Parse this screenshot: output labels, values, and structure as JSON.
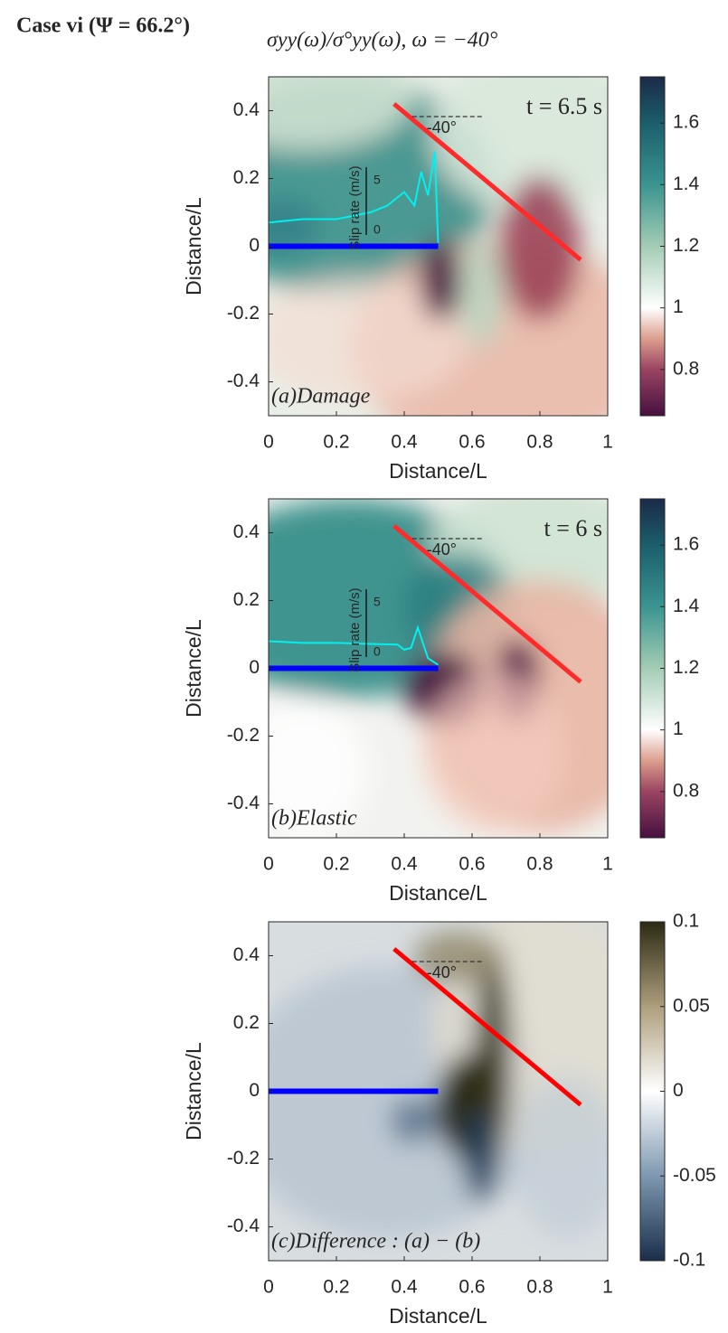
{
  "header": "Case vi (Ψ = 66.2°)",
  "title": "σyy(ω)/σ°yy(ω), ω = −40°",
  "chart_data": [
    {
      "type": "heatmap",
      "panel_label": "(a)Damage",
      "time_label": "t = 6.5 s",
      "xlabel": "Distance/L",
      "ylabel": "Distance/L",
      "xlim": [
        0,
        1
      ],
      "xticks": [
        0,
        0.2,
        0.4,
        0.6,
        0.8,
        1
      ],
      "ylim": [
        -0.5,
        0.5
      ],
      "yticks": [
        -0.4,
        -0.2,
        0,
        0.2,
        0.4
      ],
      "clim": [
        0.65,
        1.75
      ],
      "cticks": [
        0.8,
        1,
        1.2,
        1.4,
        1.6
      ],
      "colormap": [
        [
          0.65,
          "#451040"
        ],
        [
          0.8,
          "#9a4462"
        ],
        [
          0.9,
          "#dc9e8e"
        ],
        [
          1,
          "#ffffff"
        ],
        [
          1.2,
          "#a3ccb4"
        ],
        [
          1.4,
          "#3a9490"
        ],
        [
          1.6,
          "#1b5e6c"
        ],
        [
          1.75,
          "#1b2a48"
        ]
      ],
      "angle_label": "-40°",
      "slip_label": "Slip rate (m/s)",
      "slip_scale_ticks": [
        5,
        0
      ],
      "faults": [
        {
          "color": "#0000ff",
          "x": [
            0,
            0.5
          ],
          "y": [
            0,
            0
          ]
        },
        {
          "color": "#ff2a2a",
          "x": [
            0.37,
            0.92
          ],
          "y": [
            0.42,
            -0.04
          ]
        }
      ],
      "series": [
        {
          "color": "#00f0f0",
          "x": [
            0,
            0.1,
            0.2,
            0.3,
            0.35,
            0.4,
            0.43,
            0.45,
            0.47,
            0.49,
            0.5
          ],
          "values": [
            0.07,
            0.08,
            0.08,
            0.1,
            0.12,
            0.16,
            0.12,
            0.22,
            0.15,
            0.28,
            0.01
          ]
        }
      ]
    },
    {
      "type": "heatmap",
      "panel_label": "(b)Elastic",
      "time_label": "t = 6 s",
      "xlabel": "Distance/L",
      "ylabel": "Distance/L",
      "xlim": [
        0,
        1
      ],
      "xticks": [
        0,
        0.2,
        0.4,
        0.6,
        0.8,
        1
      ],
      "ylim": [
        -0.5,
        0.5
      ],
      "yticks": [
        -0.4,
        -0.2,
        0,
        0.2,
        0.4
      ],
      "clim": [
        0.65,
        1.75
      ],
      "cticks": [
        0.8,
        1,
        1.2,
        1.4,
        1.6
      ],
      "colormap": [
        [
          0.65,
          "#451040"
        ],
        [
          0.8,
          "#9a4462"
        ],
        [
          0.9,
          "#dc9e8e"
        ],
        [
          1,
          "#ffffff"
        ],
        [
          1.2,
          "#a3ccb4"
        ],
        [
          1.4,
          "#3a9490"
        ],
        [
          1.6,
          "#1b5e6c"
        ],
        [
          1.75,
          "#1b2a48"
        ]
      ],
      "angle_label": "-40°",
      "slip_label": "Slip rate (m/s)",
      "slip_scale_ticks": [
        5,
        0
      ],
      "faults": [
        {
          "color": "#0000ff",
          "x": [
            0,
            0.5
          ],
          "y": [
            0,
            0
          ]
        },
        {
          "color": "#ff2a2a",
          "x": [
            0.37,
            0.92
          ],
          "y": [
            0.42,
            -0.04
          ]
        }
      ],
      "series": [
        {
          "color": "#00f0f0",
          "x": [
            0,
            0.1,
            0.2,
            0.3,
            0.38,
            0.4,
            0.42,
            0.44,
            0.47,
            0.5
          ],
          "values": [
            0.08,
            0.075,
            0.075,
            0.072,
            0.07,
            0.055,
            0.06,
            0.12,
            0.03,
            0.01
          ]
        }
      ]
    },
    {
      "type": "heatmap",
      "panel_label": "(c)Difference : (a) − (b)",
      "xlabel": "Distance/L",
      "ylabel": "Distance/L",
      "xlim": [
        0,
        1
      ],
      "xticks": [
        0,
        0.2,
        0.4,
        0.6,
        0.8,
        1
      ],
      "ylim": [
        -0.5,
        0.5
      ],
      "yticks": [
        -0.4,
        -0.2,
        0,
        0.2,
        0.4
      ],
      "clim": [
        -0.1,
        0.1
      ],
      "cticks": [
        -0.1,
        -0.05,
        0,
        0.05,
        0.1
      ],
      "colormap": [
        [
          -0.1,
          "#1a2e4a"
        ],
        [
          -0.05,
          "#7d98b0"
        ],
        [
          0,
          "#ffffff"
        ],
        [
          0.05,
          "#ad9e7c"
        ],
        [
          0.1,
          "#2c2a14"
        ]
      ],
      "angle_label": "-40°",
      "faults": [
        {
          "color": "#0000ff",
          "x": [
            0,
            0.5
          ],
          "y": [
            0,
            0
          ]
        },
        {
          "color": "#ff0000",
          "x": [
            0.37,
            0.92
          ],
          "y": [
            0.42,
            -0.04
          ]
        }
      ]
    }
  ]
}
